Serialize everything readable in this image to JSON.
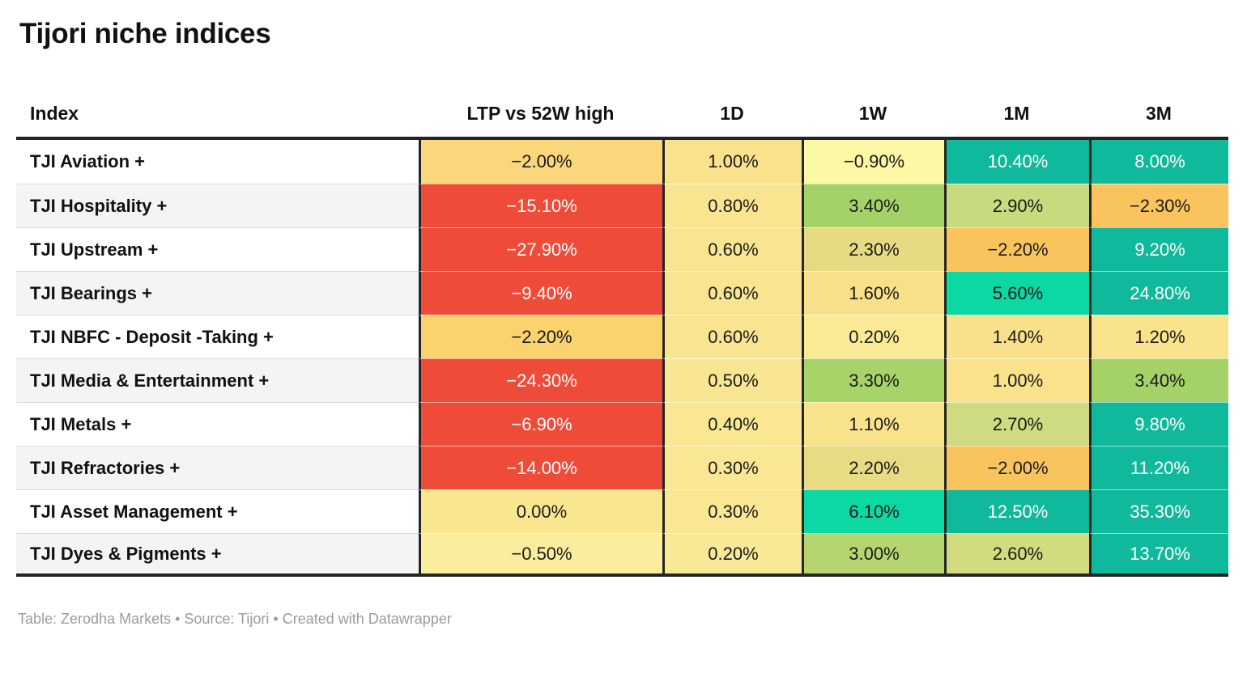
{
  "title": "Tijori niche indices",
  "footer": "Table: Zerodha Markets • Source: Tijori • Created with Datawrapper",
  "colors": {
    "strong_negative": "#ee4b39",
    "negative_orange": "#f9c45e",
    "neutral_yellow": "#f9e590",
    "positive_green": "#a5d268",
    "strong_positive_bright": "#0bd8a2",
    "strong_positive_teal": "#10b99c",
    "border_dark": "#242424",
    "zebra": "#f4f4f4",
    "footer_text": "#9b9b9b"
  },
  "chart_data": {
    "type": "table",
    "title": "Tijori niche indices",
    "columns": [
      "Index",
      "LTP vs 52W high",
      "1D",
      "1W",
      "1M",
      "3M"
    ],
    "rows": [
      [
        "TJI Aviation +",
        "-2.00%",
        "1.00%",
        "-0.90%",
        "10.40%",
        "8.00%"
      ],
      [
        "TJI Hospitality +",
        "-15.10%",
        "0.80%",
        "3.40%",
        "2.90%",
        "-2.30%"
      ],
      [
        "TJI Upstream +",
        "-27.90%",
        "0.60%",
        "2.30%",
        "-2.20%",
        "9.20%"
      ],
      [
        "TJI Bearings +",
        "-9.40%",
        "0.60%",
        "1.60%",
        "5.60%",
        "24.80%"
      ],
      [
        "TJI NBFC - Deposit -Taking +",
        "-2.20%",
        "0.60%",
        "0.20%",
        "1.40%",
        "1.20%"
      ],
      [
        "TJI Media & Entertainment +",
        "-24.30%",
        "0.50%",
        "3.30%",
        "1.00%",
        "3.40%"
      ],
      [
        "TJI Metals +",
        "-6.90%",
        "0.40%",
        "1.10%",
        "2.70%",
        "9.80%"
      ],
      [
        "TJI Refractories +",
        "-14.00%",
        "0.30%",
        "2.20%",
        "-2.00%",
        "11.20%"
      ],
      [
        "TJI Asset Management +",
        "0.00%",
        "0.30%",
        "6.10%",
        "12.50%",
        "35.30%"
      ],
      [
        "TJI Dyes & Pigments +",
        "-0.50%",
        "0.20%",
        "3.00%",
        "2.60%",
        "13.70%"
      ]
    ]
  },
  "table": {
    "columns": [
      "Index",
      "LTP vs 52W high",
      "1D",
      "1W",
      "1M",
      "3M"
    ],
    "rows": [
      {
        "index": "TJI Aviation +",
        "cells": [
          {
            "v": "−2.00%",
            "bg": "#fbd77b",
            "fg": "#1a1a1a"
          },
          {
            "v": "1.00%",
            "bg": "#f9e28b",
            "fg": "#1a1a1a"
          },
          {
            "v": "−0.90%",
            "bg": "#fdf8a5",
            "fg": "#1a1a1a"
          },
          {
            "v": "10.40%",
            "bg": "#10b99c",
            "fg": "#ffffff"
          },
          {
            "v": "8.00%",
            "bg": "#10b99c",
            "fg": "#ffffff"
          }
        ]
      },
      {
        "index": "TJI Hospitality +",
        "cells": [
          {
            "v": "−15.10%",
            "bg": "#ee4b39",
            "fg": "#ffffff"
          },
          {
            "v": "0.80%",
            "bg": "#f9e590",
            "fg": "#1a1a1a"
          },
          {
            "v": "3.40%",
            "bg": "#a5d268",
            "fg": "#1a1a1a"
          },
          {
            "v": "2.90%",
            "bg": "#c8da7e",
            "fg": "#1a1a1a"
          },
          {
            "v": "−2.30%",
            "bg": "#f9c45e",
            "fg": "#1a1a1a"
          }
        ]
      },
      {
        "index": "TJI Upstream +",
        "cells": [
          {
            "v": "−27.90%",
            "bg": "#ee4b39",
            "fg": "#ffffff"
          },
          {
            "v": "0.60%",
            "bg": "#f9e591",
            "fg": "#1a1a1a"
          },
          {
            "v": "2.30%",
            "bg": "#e6da82",
            "fg": "#1a1a1a"
          },
          {
            "v": "−2.20%",
            "bg": "#f9c45e",
            "fg": "#1a1a1a"
          },
          {
            "v": "9.20%",
            "bg": "#10b99c",
            "fg": "#ffffff"
          }
        ]
      },
      {
        "index": "TJI Bearings +",
        "cells": [
          {
            "v": "−9.40%",
            "bg": "#ee4b39",
            "fg": "#ffffff"
          },
          {
            "v": "0.60%",
            "bg": "#f9e591",
            "fg": "#1a1a1a"
          },
          {
            "v": "1.60%",
            "bg": "#f8e08a",
            "fg": "#1a1a1a"
          },
          {
            "v": "5.60%",
            "bg": "#0bd8a2",
            "fg": "#1a1a1a"
          },
          {
            "v": "24.80%",
            "bg": "#10b99c",
            "fg": "#ffffff"
          }
        ]
      },
      {
        "index": "TJI NBFC - Deposit -Taking +",
        "cells": [
          {
            "v": "−2.20%",
            "bg": "#fad26e",
            "fg": "#1a1a1a"
          },
          {
            "v": "0.60%",
            "bg": "#f9e591",
            "fg": "#1a1a1a"
          },
          {
            "v": "0.20%",
            "bg": "#faea96",
            "fg": "#1a1a1a"
          },
          {
            "v": "1.40%",
            "bg": "#f9e18b",
            "fg": "#1a1a1a"
          },
          {
            "v": "1.20%",
            "bg": "#f9e38d",
            "fg": "#1a1a1a"
          }
        ]
      },
      {
        "index": "TJI Media & Entertainment +",
        "cells": [
          {
            "v": "−24.30%",
            "bg": "#ee4b39",
            "fg": "#ffffff"
          },
          {
            "v": "0.50%",
            "bg": "#f9e692",
            "fg": "#1a1a1a"
          },
          {
            "v": "3.30%",
            "bg": "#a8d369",
            "fg": "#1a1a1a"
          },
          {
            "v": "1.00%",
            "bg": "#f9e28b",
            "fg": "#1a1a1a"
          },
          {
            "v": "3.40%",
            "bg": "#a5d268",
            "fg": "#1a1a1a"
          }
        ]
      },
      {
        "index": "TJI Metals +",
        "cells": [
          {
            "v": "−6.90%",
            "bg": "#ee4b39",
            "fg": "#ffffff"
          },
          {
            "v": "0.40%",
            "bg": "#f9e793",
            "fg": "#1a1a1a"
          },
          {
            "v": "1.10%",
            "bg": "#f9e28c",
            "fg": "#1a1a1a"
          },
          {
            "v": "2.70%",
            "bg": "#cedb80",
            "fg": "#1a1a1a"
          },
          {
            "v": "9.80%",
            "bg": "#10b99c",
            "fg": "#ffffff"
          }
        ]
      },
      {
        "index": "TJI Refractories +",
        "cells": [
          {
            "v": "−14.00%",
            "bg": "#ee4b39",
            "fg": "#ffffff"
          },
          {
            "v": "0.30%",
            "bg": "#f9e794",
            "fg": "#1a1a1a"
          },
          {
            "v": "2.20%",
            "bg": "#e7db83",
            "fg": "#1a1a1a"
          },
          {
            "v": "−2.00%",
            "bg": "#f9c45e",
            "fg": "#1a1a1a"
          },
          {
            "v": "11.20%",
            "bg": "#10b99c",
            "fg": "#ffffff"
          }
        ]
      },
      {
        "index": "TJI Asset Management +",
        "cells": [
          {
            "v": "0.00%",
            "bg": "#f9e78f",
            "fg": "#1a1a1a"
          },
          {
            "v": "0.30%",
            "bg": "#f9e794",
            "fg": "#1a1a1a"
          },
          {
            "v": "6.10%",
            "bg": "#0bd8a2",
            "fg": "#1a1a1a"
          },
          {
            "v": "12.50%",
            "bg": "#10b99c",
            "fg": "#ffffff"
          },
          {
            "v": "35.30%",
            "bg": "#10b99c",
            "fg": "#ffffff"
          }
        ]
      },
      {
        "index": "TJI Dyes & Pigments +",
        "cells": [
          {
            "v": "−0.50%",
            "bg": "#faed9d",
            "fg": "#1a1a1a"
          },
          {
            "v": "0.20%",
            "bg": "#f9e895",
            "fg": "#1a1a1a"
          },
          {
            "v": "3.00%",
            "bg": "#b4d56f",
            "fg": "#1a1a1a"
          },
          {
            "v": "2.60%",
            "bg": "#d3db7f",
            "fg": "#1a1a1a"
          },
          {
            "v": "13.70%",
            "bg": "#10b99c",
            "fg": "#ffffff"
          }
        ]
      }
    ]
  }
}
